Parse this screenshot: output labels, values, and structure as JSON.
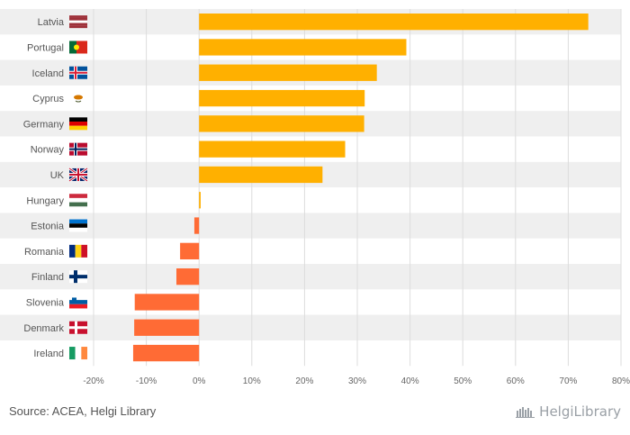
{
  "chart_data": {
    "type": "bar",
    "orientation": "horizontal",
    "categories": [
      "Latvia",
      "Portugal",
      "Iceland",
      "Cyprus",
      "Germany",
      "Norway",
      "UK",
      "Hungary",
      "Estonia",
      "Romania",
      "Finland",
      "Slovenia",
      "Denmark",
      "Ireland"
    ],
    "values": [
      73.8,
      39.3,
      33.7,
      31.4,
      31.3,
      27.7,
      23.4,
      0.3,
      -0.9,
      -3.6,
      -4.3,
      -12.2,
      -12.3,
      -12.5
    ],
    "xlim": [
      -20,
      80
    ],
    "ticks": [
      -20,
      -10,
      0,
      10,
      20,
      30,
      40,
      50,
      60,
      70,
      80
    ],
    "tick_labels": [
      "-20%",
      "-10%",
      "0%",
      "10%",
      "20%",
      "30%",
      "40%",
      "50%",
      "60%",
      "70%",
      "80%"
    ],
    "positive_color": "#ffb000",
    "negative_color": "#ff6b35",
    "flags": [
      "latvia-flag",
      "portugal-flag",
      "iceland-flag",
      "cyprus-flag",
      "germany-flag",
      "norway-flag",
      "uk-flag",
      "hungary-flag",
      "estonia-flag",
      "romania-flag",
      "finland-flag",
      "slovenia-flag",
      "denmark-flag",
      "ireland-flag"
    ],
    "title": "",
    "xlabel": "",
    "ylabel": ""
  },
  "footer": {
    "source": "Source: ACEA, Helgi Library",
    "brand": "HelgiLibrary"
  }
}
